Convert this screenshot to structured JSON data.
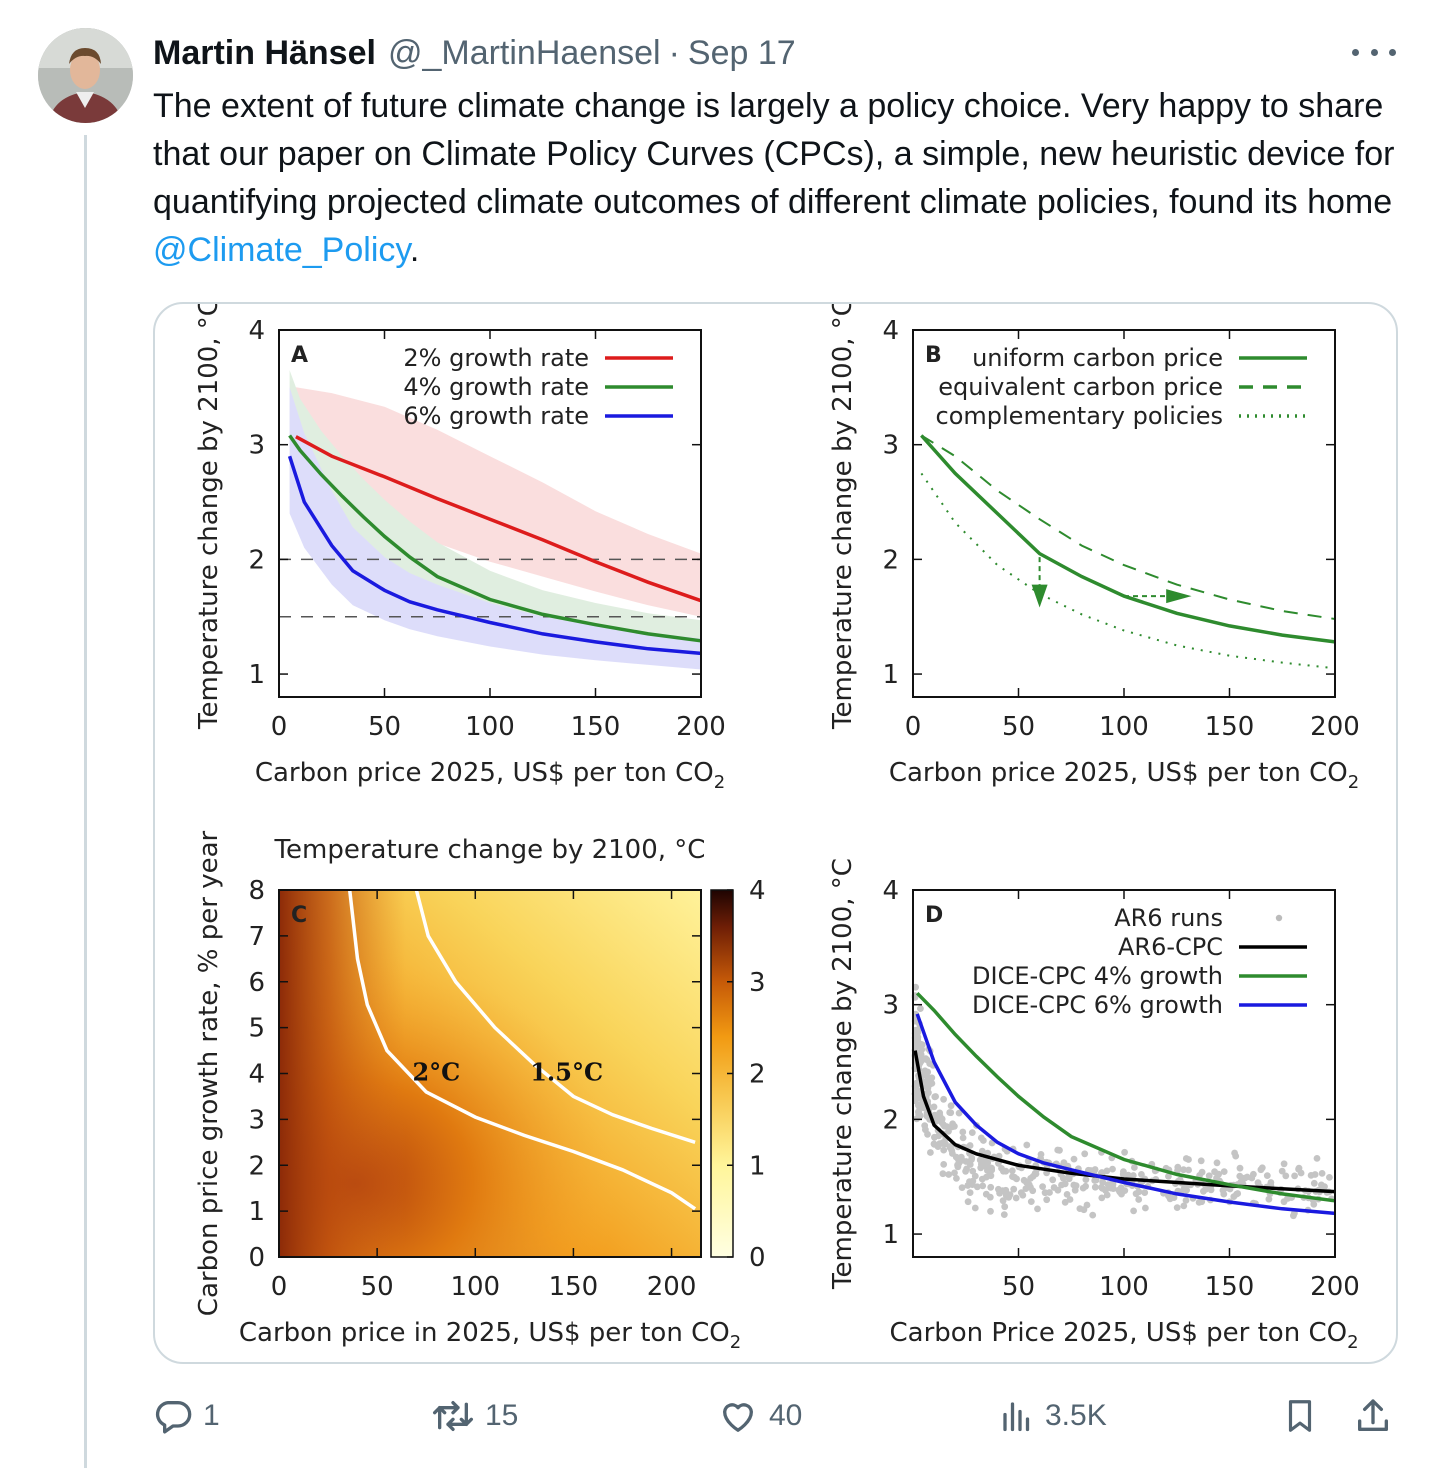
{
  "tweet": {
    "author_name": "Martin Hänsel",
    "handle": "@_MartinHaensel",
    "separator": "·",
    "date": "Sep 17",
    "text_before": "The extent of future climate change is largely a policy choice. Very happy to share that our paper on Climate Policy Curves (CPCs), a simple, new heuristic device for quantifying projected climate outcomes of different climate policies, found its home ",
    "mention": "@Climate_Policy",
    "text_after": "."
  },
  "actions": {
    "replies": "1",
    "reposts": "15",
    "likes": "40",
    "views": "3.5K"
  },
  "icons": [
    "more-icon",
    "reply-icon",
    "repost-icon",
    "like-icon",
    "views-icon",
    "bookmark-icon",
    "share-icon"
  ],
  "colors": {
    "text": "#0f1419",
    "secondary": "#536471",
    "link": "#1d9bf0",
    "border": "#cfd9de",
    "red": "#dd1c1c",
    "green": "#2e8b2e",
    "blue": "#1a1adf"
  },
  "chart_data": [
    {
      "panel": "A",
      "type": "line",
      "ylabel": "Temperature change by 2100, °C",
      "xlabel": "Carbon price 2025, US$ per ton CO",
      "xlabel_sub": "2",
      "xlim": [
        0,
        200
      ],
      "ylim": [
        0.8,
        4
      ],
      "xticks": [
        "0",
        "50",
        "100",
        "150",
        "200"
      ],
      "yticks": [
        "1",
        "2",
        "3",
        "4"
      ],
      "hlines": [
        2,
        1.5
      ],
      "series": [
        {
          "name": "2% growth rate",
          "color": "#dd1c1c",
          "x": [
            8,
            25,
            50,
            75,
            100,
            125,
            150,
            175,
            200
          ],
          "y": [
            3.07,
            2.9,
            2.72,
            2.53,
            2.35,
            2.17,
            1.98,
            1.8,
            1.64
          ],
          "band_upper": [
            3.5,
            3.45,
            3.33,
            3.13,
            2.9,
            2.67,
            2.42,
            2.22,
            2.05
          ],
          "band_lower": [
            2.6,
            2.45,
            2.3,
            2.14,
            1.98,
            1.85,
            1.72,
            1.6,
            1.5
          ]
        },
        {
          "name": "4% growth rate",
          "color": "#2e8b2e",
          "x": [
            5,
            10,
            20,
            30,
            40,
            50,
            62,
            75,
            100,
            125,
            150,
            175,
            200
          ],
          "y": [
            3.08,
            2.95,
            2.74,
            2.55,
            2.37,
            2.2,
            2.02,
            1.85,
            1.65,
            1.52,
            1.43,
            1.35,
            1.29
          ],
          "band_upper": [
            3.65,
            3.4,
            3.12,
            2.9,
            2.7,
            2.52,
            2.33,
            2.15,
            1.9,
            1.73,
            1.62,
            1.53,
            1.47
          ],
          "band_lower": [
            2.58,
            2.45,
            2.3,
            2.15,
            2.0,
            1.86,
            1.72,
            1.6,
            1.45,
            1.34,
            1.26,
            1.2,
            1.15
          ]
        },
        {
          "name": "6% growth rate",
          "color": "#1a1adf",
          "x": [
            5,
            12,
            25,
            35,
            50,
            62,
            75,
            100,
            125,
            150,
            175,
            200
          ],
          "y": [
            2.9,
            2.5,
            2.12,
            1.9,
            1.73,
            1.63,
            1.56,
            1.45,
            1.35,
            1.28,
            1.22,
            1.18
          ],
          "band_upper": [
            3.5,
            3.1,
            2.6,
            2.28,
            2.02,
            1.88,
            1.78,
            1.62,
            1.5,
            1.42,
            1.36,
            1.31
          ],
          "band_lower": [
            2.4,
            2.1,
            1.78,
            1.6,
            1.47,
            1.39,
            1.33,
            1.24,
            1.17,
            1.12,
            1.08,
            1.04
          ]
        }
      ]
    },
    {
      "panel": "B",
      "type": "line",
      "ylabel": "Temperature change by 2100, °C",
      "xlabel": "Carbon price 2025, US$ per ton CO",
      "xlabel_sub": "2",
      "xlim": [
        0,
        200
      ],
      "ylim": [
        0.8,
        4
      ],
      "xticks": [
        "0",
        "50",
        "100",
        "150",
        "200"
      ],
      "yticks": [
        "1",
        "2",
        "3",
        "4"
      ],
      "series": [
        {
          "name": "uniform carbon price",
          "style": "solid",
          "x": [
            4,
            20,
            40,
            60,
            80,
            100,
            125,
            150,
            175,
            200
          ],
          "y": [
            3.08,
            2.75,
            2.4,
            2.05,
            1.85,
            1.68,
            1.53,
            1.42,
            1.34,
            1.28
          ]
        },
        {
          "name": "equivalent carbon price",
          "style": "dashed",
          "x": [
            4,
            20,
            40,
            60,
            80,
            100,
            125,
            150,
            175,
            200
          ],
          "y": [
            3.08,
            2.9,
            2.6,
            2.35,
            2.12,
            1.95,
            1.78,
            1.65,
            1.55,
            1.48
          ]
        },
        {
          "name": "complementary policies",
          "style": "dotted",
          "x": [
            4,
            20,
            40,
            60,
            80,
            100,
            125,
            150,
            175,
            200
          ],
          "y": [
            2.75,
            2.32,
            1.95,
            1.7,
            1.52,
            1.38,
            1.25,
            1.16,
            1.1,
            1.05
          ]
        }
      ]
    },
    {
      "panel": "C",
      "type": "heatmap",
      "title": "Temperature change by 2100, °C",
      "ylabel": "Carbon price growth rate, % per year",
      "xlabel": "Carbon price in 2025, US$ per ton CO",
      "xlabel_sub": "2",
      "xlim": [
        0,
        215
      ],
      "ylim": [
        0,
        8
      ],
      "xticks": [
        "0",
        "50",
        "100",
        "150",
        "200"
      ],
      "yticks": [
        "0",
        "1",
        "2",
        "3",
        "4",
        "5",
        "6",
        "7",
        "8"
      ],
      "colorbar_ticks": [
        "0",
        "1",
        "2",
        "3",
        "4"
      ],
      "contours": [
        {
          "label": "2°C",
          "x": [
            36,
            40,
            45,
            55,
            75,
            100,
            125,
            150,
            175,
            200,
            212
          ],
          "y": [
            8,
            6.5,
            5.5,
            4.5,
            3.6,
            3.05,
            2.65,
            2.3,
            1.9,
            1.4,
            1.05
          ]
        },
        {
          "label": "1.5°C",
          "x": [
            70,
            76,
            90,
            110,
            130,
            150,
            170,
            190,
            212
          ],
          "y": [
            8,
            7,
            6,
            5,
            4.2,
            3.5,
            3.1,
            2.8,
            2.5
          ]
        }
      ]
    },
    {
      "panel": "D",
      "type": "scatter",
      "ylabel": "Temperature change by 2100, °C",
      "xlabel": "Carbon Price 2025, US$ per ton CO",
      "xlabel_sub": "2",
      "xlim": [
        0,
        200
      ],
      "ylim": [
        0.8,
        4
      ],
      "xticks": [
        "50",
        "100",
        "150",
        "200"
      ],
      "yticks": [
        "1",
        "2",
        "3",
        "4"
      ],
      "series": [
        {
          "name": "AR6 runs",
          "style": "points"
        },
        {
          "name": "AR6-CPC",
          "color": "#000000",
          "x": [
            1,
            5,
            10,
            20,
            30,
            50,
            75,
            100,
            150,
            200
          ],
          "y": [
            2.6,
            2.2,
            1.95,
            1.78,
            1.7,
            1.6,
            1.53,
            1.48,
            1.42,
            1.37
          ]
        },
        {
          "name": "DICE-CPC 4% growth",
          "color": "#2e8b2e",
          "x": [
            2,
            10,
            20,
            30,
            40,
            50,
            62,
            75,
            100,
            125,
            150,
            175,
            200
          ],
          "y": [
            3.1,
            2.95,
            2.74,
            2.55,
            2.37,
            2.2,
            2.02,
            1.85,
            1.65,
            1.52,
            1.43,
            1.35,
            1.29
          ]
        },
        {
          "name": "DICE-CPC 6% growth",
          "color": "#1a1adf",
          "x": [
            2,
            10,
            20,
            30,
            40,
            50,
            62,
            75,
            100,
            125,
            150,
            175,
            200
          ],
          "y": [
            2.92,
            2.5,
            2.15,
            1.95,
            1.8,
            1.7,
            1.62,
            1.56,
            1.45,
            1.35,
            1.28,
            1.22,
            1.18
          ]
        }
      ]
    }
  ]
}
